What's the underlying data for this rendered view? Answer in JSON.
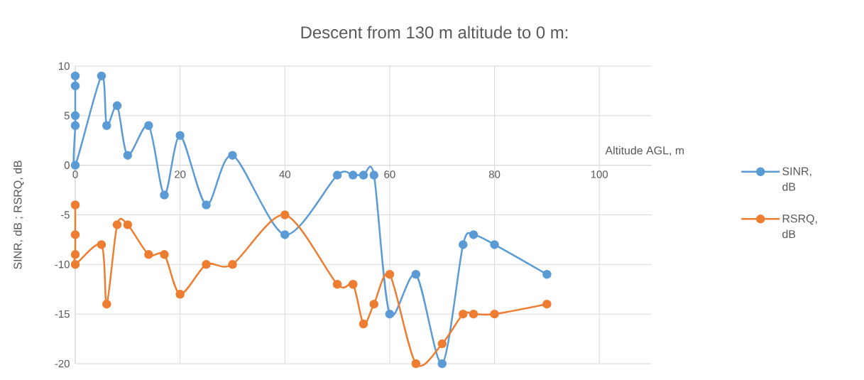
{
  "chart_data": {
    "type": "line",
    "title": "Descent from 130 m altitude to 0 m:",
    "xlabel": "Altitude AGL, m",
    "ylabel": "SINR, dB ; RSRQ, dB",
    "series": [
      {
        "name": "SINR, dB",
        "color": "#5b9bd5",
        "x": [
          0,
          0,
          0,
          0,
          0,
          5,
          6,
          8,
          10,
          14,
          17,
          20,
          25,
          30,
          40,
          50,
          53,
          55,
          57,
          60,
          65,
          70,
          74,
          76,
          80,
          90
        ],
        "values": [
          9,
          8,
          5,
          4,
          0,
          9,
          4,
          6,
          1,
          4,
          -3,
          3,
          -4,
          1,
          -7,
          -1,
          -1,
          -1,
          -1,
          -15,
          -11,
          -20,
          -8,
          -7,
          -8,
          -11
        ]
      },
      {
        "name": "RSRQ, dB",
        "color": "#ed7d31",
        "x": [
          0,
          0,
          0,
          0,
          5,
          6,
          8,
          10,
          14,
          17,
          20,
          25,
          30,
          40,
          50,
          53,
          55,
          57,
          60,
          65,
          70,
          74,
          76,
          80,
          90
        ],
        "values": [
          -4,
          -7,
          -9,
          -10,
          -8,
          -14,
          -6,
          -6,
          -9,
          -9,
          -13,
          -10,
          -10,
          -5,
          -12,
          -12,
          -16,
          -14,
          -11,
          -20,
          -18,
          -15,
          -15,
          -15,
          -14
        ]
      }
    ],
    "xlim": [
      0,
      110
    ],
    "xticks": [
      0,
      20,
      40,
      60,
      80,
      100
    ],
    "ylim": [
      -20,
      10
    ],
    "yticks": [
      -20,
      -15,
      -10,
      -5,
      0,
      5,
      10
    ],
    "grid": true,
    "legend": "right",
    "marker": "circle",
    "line_style": "solid"
  }
}
